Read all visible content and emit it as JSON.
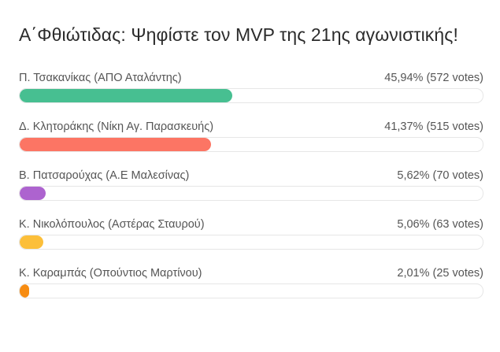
{
  "poll": {
    "title": "Α΄Φθιώτιδας: Ψηφίστε τον MVP της 21ης αγωνιστικής!",
    "options": [
      {
        "label": "Π. Τσακανίκας (ΑΠΟ Αταλάντης)",
        "result": "45,94% (572 votes)",
        "percent": 45.94,
        "color": "#47bf91"
      },
      {
        "label": "Δ. Κλητοράκης (Νίκη Αγ. Παρασκευής)",
        "result": "41,37% (515 votes)",
        "percent": 41.37,
        "color": "#fc7564"
      },
      {
        "label": "Β. Πατσαρούχας (Α.Ε Μαλεσίνας)",
        "result": "5,62% (70 votes)",
        "percent": 5.62,
        "color": "#ad63cf"
      },
      {
        "label": "Κ. Νικολόπουλος (Αστέρας Σταυρού)",
        "result": "5,06% (63 votes)",
        "percent": 5.06,
        "color": "#fcbf3a"
      },
      {
        "label": "Κ. Καραμπάς (Οπούντιος Μαρτίνου)",
        "result": "2,01% (25 votes)",
        "percent": 2.01,
        "color": "#f78c12"
      }
    ]
  }
}
